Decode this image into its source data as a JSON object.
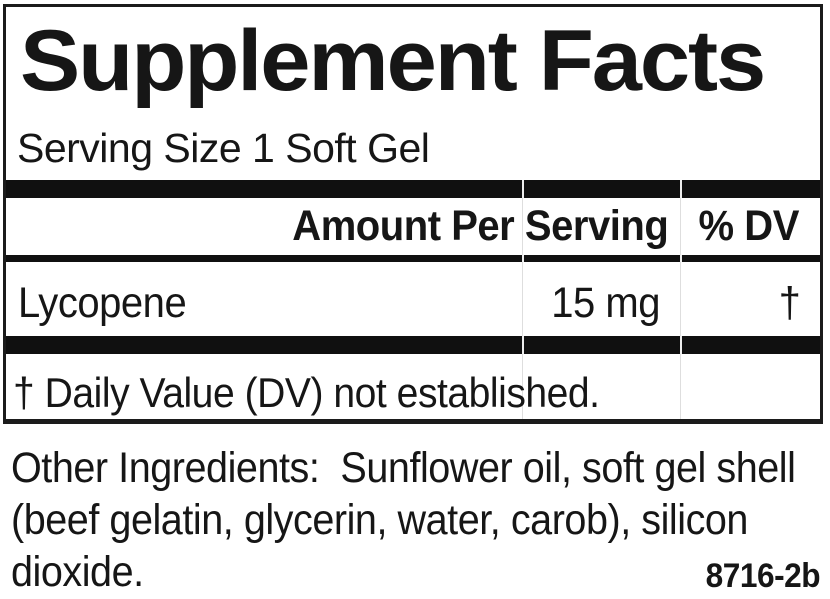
{
  "label": {
    "title": "Supplement Facts",
    "serving_size": "Serving Size 1 Soft Gel",
    "header": {
      "amount_per_serving": "Amount Per Serving",
      "percent_dv": "% DV"
    },
    "rows": [
      {
        "name": "Lycopene",
        "amount": "15 mg",
        "daily_value": "†"
      }
    ],
    "footnote": "† Daily Value (DV) not established."
  },
  "other_ingredients": {
    "lines": [
      "Other Ingredients:  Sunflower oil, soft gel shell",
      "(beef gelatin, glycerin, water, carob), silicon",
      "dioxide."
    ]
  },
  "product_code": "8716-2b",
  "colors": {
    "ink": "#161616",
    "bar": "#101010",
    "background": "#ffffff"
  }
}
